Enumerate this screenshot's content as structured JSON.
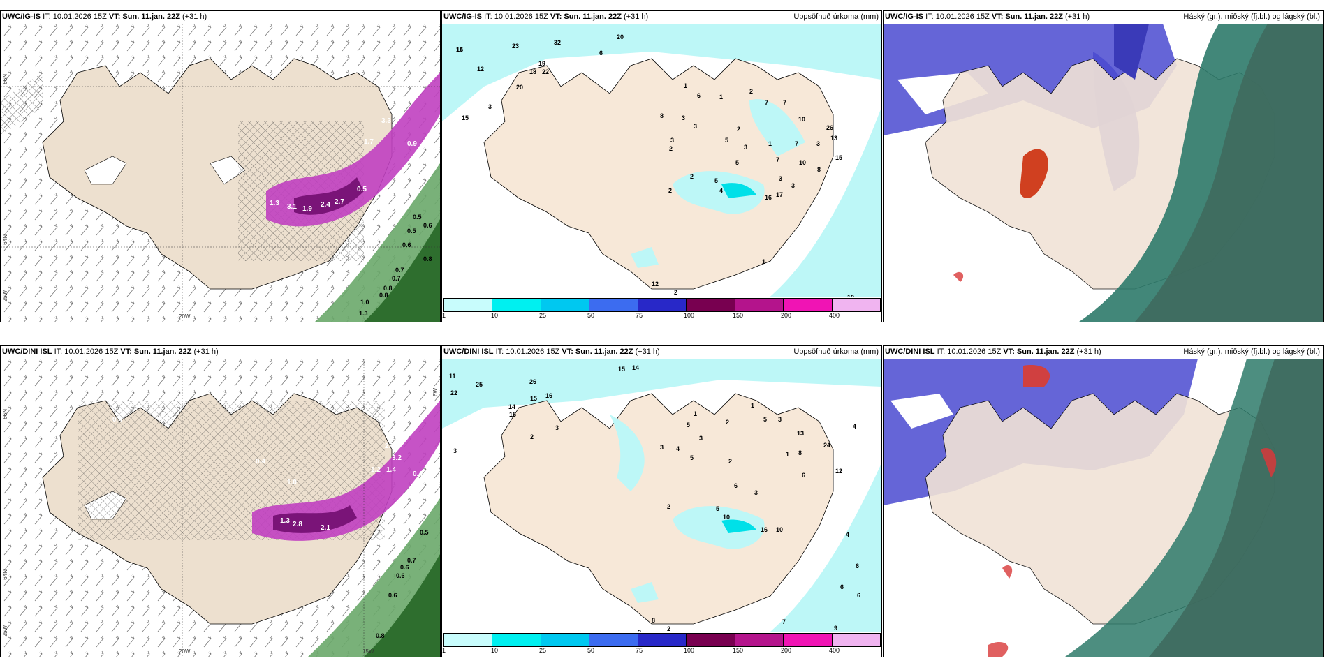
{
  "panels": [
    {
      "model": "UWC/IG-IS",
      "it": "IT: 10.01.2026 15Z",
      "vt": "VT: Sun. 11.jan. 22Z",
      "lead": "(+31 h)",
      "right": ""
    },
    {
      "model": "UWC/IG-IS",
      "it": "IT: 10.01.2026 15Z",
      "vt": "VT: Sun. 11.jan. 22Z",
      "lead": "(+31 h)",
      "right": "Uppsöfnuð úrkoma (mm)"
    },
    {
      "model": "UWC/IG-IS",
      "it": "IT: 10.01.2026 15Z",
      "vt": "VT: Sun. 11.jan. 22Z",
      "lead": "(+31 h)",
      "right": "Háský (gr.), miðský (fj.bl.) og lágský (bl.)"
    },
    {
      "model": "UWC/DINI ISL",
      "it": "IT: 10.01.2026 15Z",
      "vt": "VT: Sun. 11.jan. 22Z",
      "lead": "(+31 h)",
      "right": ""
    },
    {
      "model": "UWC/DINI ISL",
      "it": "IT: 10.01.2026 15Z",
      "vt": "VT: Sun. 11.jan. 22Z",
      "lead": "(+31 h)",
      "right": "Uppsöfnuð úrkoma (mm)"
    },
    {
      "model": "UWC/DINI ISL",
      "it": "IT: 10.01.2026 15Z",
      "vt": "VT: Sun. 11.jan. 22Z",
      "lead": "(+31 h)",
      "right": "Háský (gr.), miðský (fj.bl.) og lágský (bl.)"
    }
  ],
  "axes": {
    "lon_20": "20W",
    "lon_15": "15W",
    "lon_25": "25W",
    "lat_66": "66N",
    "lat_64": "64N",
    "lon_6w": "6W"
  },
  "colorbar": {
    "labels": [
      "1",
      "10",
      "25",
      "50",
      "75",
      "100",
      "150",
      "200",
      "400"
    ],
    "colors": [
      "#c8fcfc",
      "#00f0f0",
      "#00c8f0",
      "#3c6cf0",
      "#2828c8",
      "#780050",
      "#b4148c",
      "#f014b4",
      "#f0b4f0"
    ]
  },
  "precip_labels_top": [
    "15",
    "23",
    "32",
    "20",
    "14",
    "12",
    "6",
    "15",
    "19",
    "18",
    "22",
    "20",
    "3",
    "1",
    "6",
    "1",
    "2",
    "7",
    "7",
    "3",
    "8",
    "3",
    "5",
    "2",
    "10",
    "3",
    "2",
    "26",
    "13",
    "3",
    "1",
    "7",
    "15",
    "5",
    "7",
    "3",
    "10",
    "8",
    "3",
    "5",
    "4",
    "2",
    "16",
    "17",
    "2",
    "3",
    "1",
    "12",
    "2",
    "10"
  ],
  "precip_labels_bottom": [
    "11",
    "25",
    "22",
    "15",
    "14",
    "26",
    "15",
    "16",
    "14",
    "15",
    "3",
    "2",
    "3",
    "1",
    "1",
    "5",
    "3",
    "4",
    "3",
    "5",
    "2",
    "2",
    "5",
    "3",
    "13",
    "1",
    "24",
    "12",
    "8",
    "4",
    "6",
    "3",
    "5",
    "10",
    "16",
    "10",
    "2",
    "6",
    "4",
    "6",
    "6",
    "6",
    "7",
    "8",
    "9",
    "2",
    "2",
    "8"
  ],
  "wind_values_top": [
    "1.3",
    "3.1",
    "1.9",
    "2.4",
    "2.7",
    "3.3",
    "1.7",
    "0.9",
    "0.5",
    "0.5",
    "0.5",
    "0.6",
    "0.6",
    "0.8",
    "0.7",
    "0.7",
    "0.8",
    "0.8",
    "1.0",
    "1.3"
  ],
  "wind_values_bottom": [
    "0.4",
    "1.0",
    "0.4",
    "1.2",
    "1.4",
    "2.7",
    "3.2",
    "0.4",
    "1.3",
    "2.8",
    "2.1",
    "0.3",
    "0.5",
    "0.7",
    "0.6",
    "0.6",
    "0.6",
    "0.8"
  ]
}
